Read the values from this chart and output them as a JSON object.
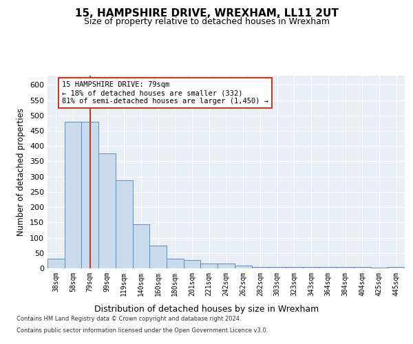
{
  "title": "15, HAMPSHIRE DRIVE, WREXHAM, LL11 2UT",
  "subtitle": "Size of property relative to detached houses in Wrexham",
  "xlabel": "Distribution of detached houses by size in Wrexham",
  "ylabel": "Number of detached properties",
  "categories": [
    "38sqm",
    "58sqm",
    "79sqm",
    "99sqm",
    "119sqm",
    "140sqm",
    "160sqm",
    "180sqm",
    "201sqm",
    "221sqm",
    "242sqm",
    "262sqm",
    "282sqm",
    "303sqm",
    "323sqm",
    "343sqm",
    "364sqm",
    "384sqm",
    "404sqm",
    "425sqm",
    "445sqm"
  ],
  "values": [
    32,
    480,
    480,
    375,
    288,
    143,
    75,
    32,
    28,
    15,
    15,
    8,
    5,
    5,
    5,
    5,
    4,
    4,
    4,
    2,
    5
  ],
  "bar_color": "#c9daea",
  "bar_edge_color": "#5b8fc7",
  "vline_index": 2,
  "vline_color": "#c0392b",
  "annotation_text": "15 HAMPSHIRE DRIVE: 79sqm\n← 18% of detached houses are smaller (332)\n81% of semi-detached houses are larger (1,450) →",
  "annotation_box_color": "#ffffff",
  "annotation_box_edge": "#c0392b",
  "ylim": [
    0,
    630
  ],
  "yticks": [
    0,
    50,
    100,
    150,
    200,
    250,
    300,
    350,
    400,
    450,
    500,
    550,
    600
  ],
  "background_color": "#e8eef4",
  "grid_color": "#ffffff",
  "fig_bg_color": "#ffffff",
  "footer_line1": "Contains HM Land Registry data © Crown copyright and database right 2024.",
  "footer_line2": "Contains public sector information licensed under the Open Government Licence v3.0."
}
